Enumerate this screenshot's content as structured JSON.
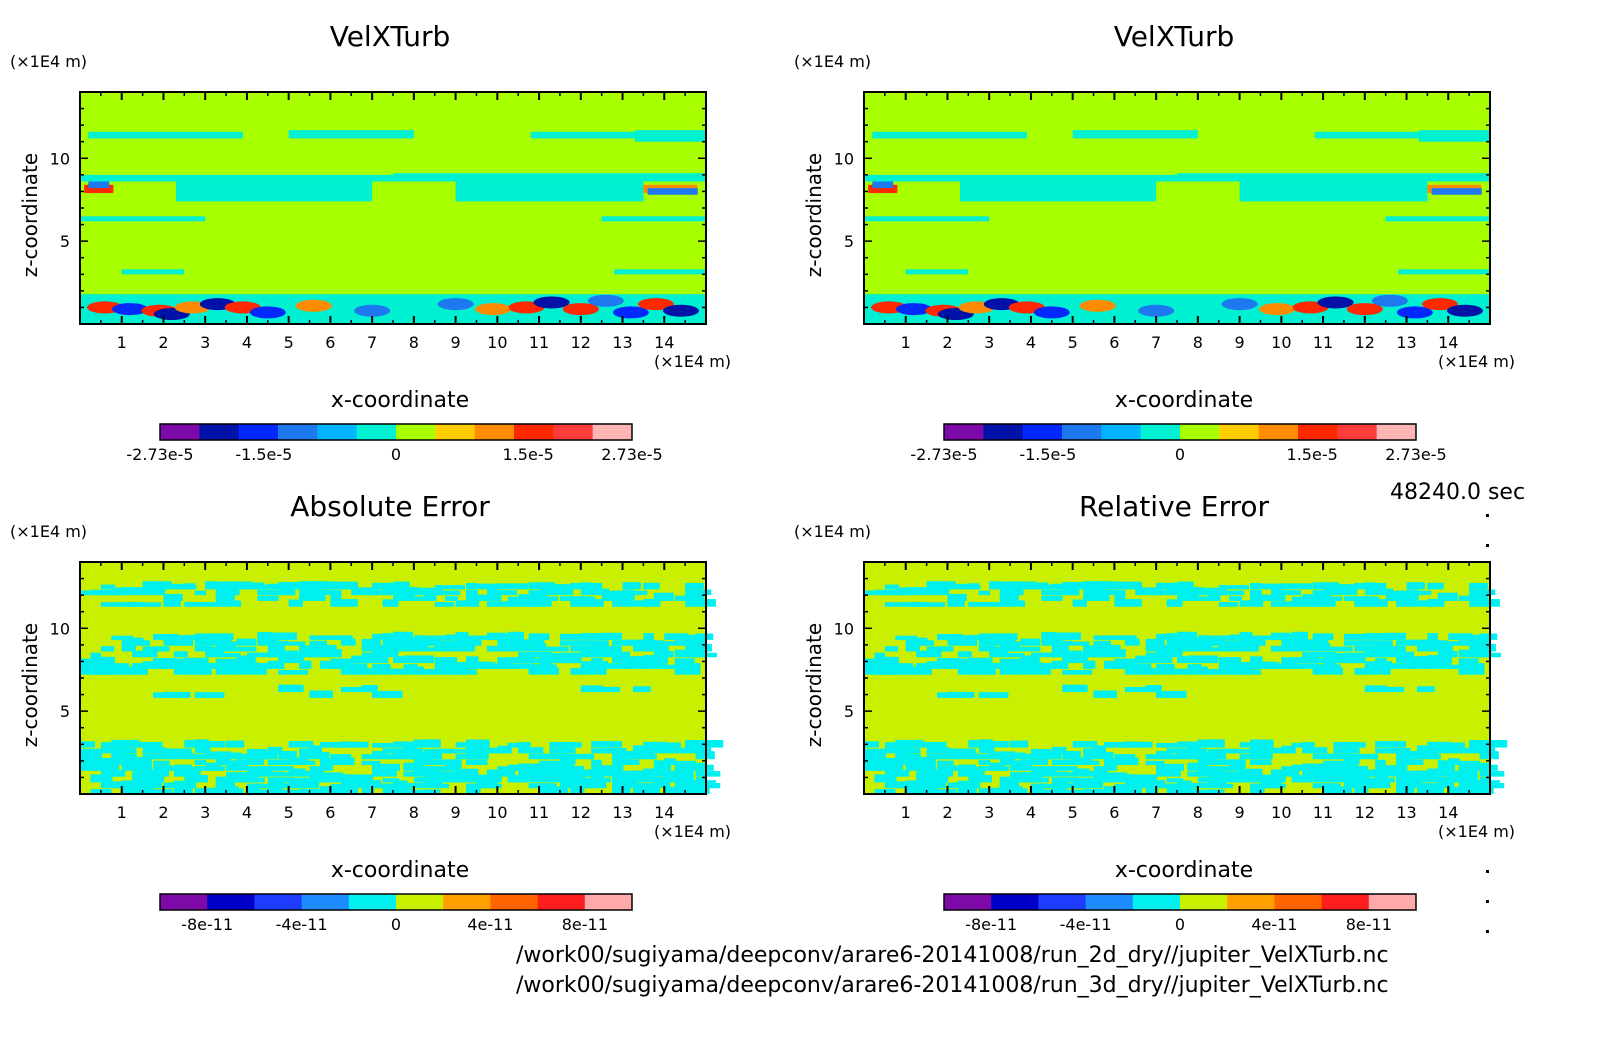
{
  "figure": {
    "time": "48240.0 sec",
    "paths": [
      "/work00/sugiyama/deepconv/arare6-20141008/run_2d_dry//jupiter_VelXTurb.nc",
      "/work00/sugiyama/deepconv/arare6-20141008/run_3d_dry//jupiter_VelXTurb.nc"
    ]
  },
  "chart_data": [
    {
      "type": "heatmap",
      "title": "VelXTurb",
      "xlabel": "x-coordinate",
      "ylabel": "z-coordinate",
      "x_unit": "(×1E4 m)",
      "y_unit": "(×1E4 m)",
      "xlim": [
        0,
        15
      ],
      "ylim": [
        0,
        14
      ],
      "x_ticks": [
        "1",
        "2",
        "3",
        "4",
        "5",
        "6",
        "7",
        "8",
        "9",
        "10",
        "11",
        "12",
        "13",
        "14"
      ],
      "y_ticks": [
        "5",
        "10"
      ],
      "colorbar": {
        "colors": [
          "#7d0aa6",
          "#0012a8",
          "#0028ff",
          "#1e78f0",
          "#00b4ff",
          "#00f0d2",
          "#a8ff00",
          "#ffcc00",
          "#ff8c00",
          "#ff2800",
          "#ff3c3c",
          "#ffb4b4"
        ],
        "tick_labels": [
          "-2.73e-5",
          "-1.5e-5",
          "0",
          "1.5e-5",
          "2.73e-5"
        ]
      },
      "field": "velxturb"
    },
    {
      "type": "heatmap",
      "title": "VelXTurb",
      "xlabel": "x-coordinate",
      "ylabel": "z-coordinate",
      "x_unit": "(×1E4 m)",
      "y_unit": "(×1E4 m)",
      "xlim": [
        0,
        15
      ],
      "ylim": [
        0,
        14
      ],
      "x_ticks": [
        "1",
        "2",
        "3",
        "4",
        "5",
        "6",
        "7",
        "8",
        "9",
        "10",
        "11",
        "12",
        "13",
        "14"
      ],
      "y_ticks": [
        "5",
        "10"
      ],
      "colorbar": {
        "colors": [
          "#7d0aa6",
          "#0012a8",
          "#0028ff",
          "#1e78f0",
          "#00b4ff",
          "#00f0d2",
          "#a8ff00",
          "#ffcc00",
          "#ff8c00",
          "#ff2800",
          "#ff3c3c",
          "#ffb4b4"
        ],
        "tick_labels": [
          "-2.73e-5",
          "-1.5e-5",
          "0",
          "1.5e-5",
          "2.73e-5"
        ]
      },
      "field": "velxturb"
    },
    {
      "type": "heatmap",
      "title": "Absolute Error",
      "xlabel": "x-coordinate",
      "ylabel": "z-coordinate",
      "x_unit": "(×1E4 m)",
      "y_unit": "(×1E4 m)",
      "xlim": [
        0,
        15
      ],
      "ylim": [
        0,
        14
      ],
      "x_ticks": [
        "1",
        "2",
        "3",
        "4",
        "5",
        "6",
        "7",
        "8",
        "9",
        "10",
        "11",
        "12",
        "13",
        "14"
      ],
      "y_ticks": [
        "5",
        "10"
      ],
      "colorbar": {
        "colors": [
          "#7d0aa6",
          "#0000c8",
          "#1e3cff",
          "#1e8cff",
          "#00f0f0",
          "#c8f000",
          "#ffa000",
          "#ff6400",
          "#ff1e1e",
          "#ffaaaa"
        ],
        "tick_labels": [
          "-8e-11",
          "-4e-11",
          "0",
          "4e-11",
          "8e-11"
        ]
      },
      "field": "error"
    },
    {
      "type": "heatmap",
      "title": "Relative Error",
      "xlabel": "x-coordinate",
      "ylabel": "z-coordinate",
      "x_unit": "(×1E4 m)",
      "y_unit": "(×1E4 m)",
      "xlim": [
        0,
        15
      ],
      "ylim": [
        0,
        14
      ],
      "x_ticks": [
        "1",
        "2",
        "3",
        "4",
        "5",
        "6",
        "7",
        "8",
        "9",
        "10",
        "11",
        "12",
        "13",
        "14"
      ],
      "y_ticks": [
        "5",
        "10"
      ],
      "colorbar": {
        "colors": [
          "#7d0aa6",
          "#0000c8",
          "#1e3cff",
          "#1e8cff",
          "#00f0f0",
          "#c8f000",
          "#ffa000",
          "#ff6400",
          "#ff1e1e",
          "#ffaaaa"
        ],
        "tick_labels": [
          "-8e-11",
          "-4e-11",
          "0",
          "4e-11",
          "8e-11"
        ]
      },
      "field": "error"
    }
  ]
}
